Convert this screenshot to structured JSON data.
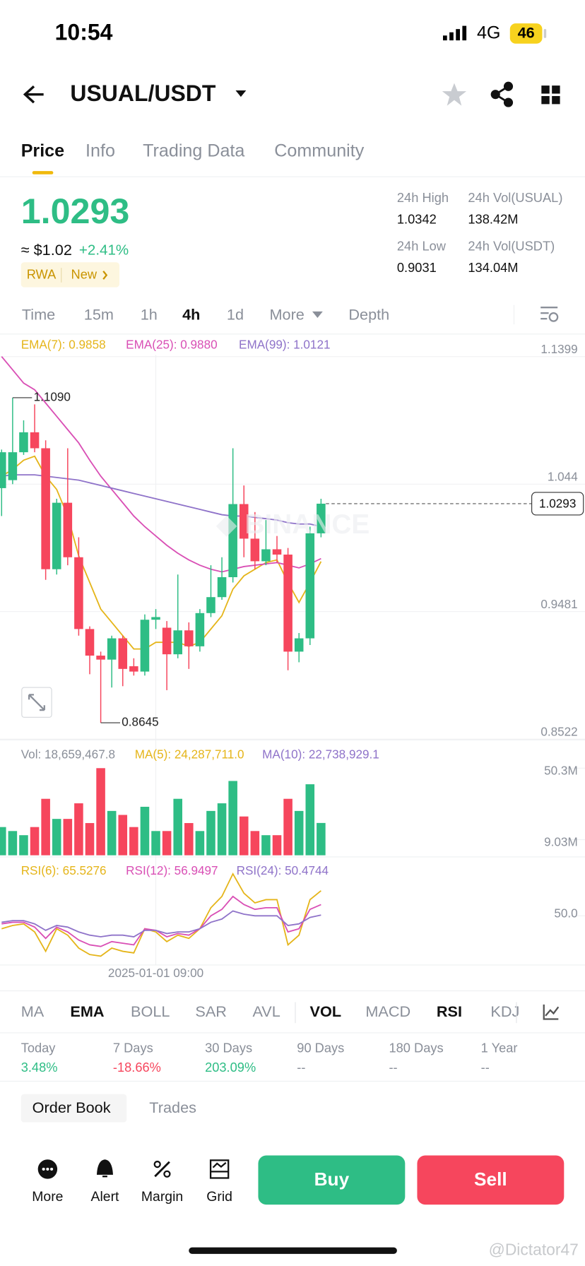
{
  "status_bar": {
    "time": "10:54",
    "network": "4G",
    "battery": "46"
  },
  "header": {
    "pair": "USUAL/USDT"
  },
  "tabs": [
    "Price",
    "Info",
    "Trading Data",
    "Community"
  ],
  "ticker": {
    "price": "1.0293",
    "usd": "≈ $1.02",
    "change": "+2.41%",
    "tags": [
      "RWA",
      "New"
    ],
    "stats": [
      {
        "label": "24h High",
        "value": "1.0342"
      },
      {
        "label": "24h Vol(USUAL)",
        "value": "138.42M"
      },
      {
        "label": "24h Low",
        "value": "0.9031"
      },
      {
        "label": "24h Vol(USDT)",
        "value": "134.04M"
      }
    ]
  },
  "intervals": [
    "Time",
    "15m",
    "1h",
    "4h",
    "1d",
    "More",
    "Depth"
  ],
  "chart_data": {
    "type": "candlestick",
    "categories": [
      null,
      null,
      null,
      null,
      null,
      null,
      null,
      null,
      null,
      null,
      null,
      null,
      null,
      null,
      "2025-01-01 09:00",
      null,
      null,
      null,
      null,
      null,
      null,
      null,
      null,
      null,
      null,
      null,
      null,
      null,
      null,
      null
    ],
    "open": [
      1.041,
      1.047,
      1.068,
      1.083,
      1.071,
      0.98,
      1.03,
      0.989,
      0.935,
      0.915,
      0.912,
      0.928,
      0.907,
      0.903,
      0.942,
      0.936,
      0.916,
      0.934,
      0.922,
      0.947,
      0.959,
      0.974,
      1.029,
      1.003,
      0.986,
      0.995,
      0.991,
      0.918,
      0.928,
      1.007
    ],
    "high": [
      1.07,
      1.109,
      1.092,
      1.104,
      1.077,
      1.033,
      1.071,
      1.004,
      0.937,
      0.918,
      0.93,
      0.93,
      0.913,
      0.946,
      0.95,
      0.941,
      0.976,
      0.94,
      0.95,
      0.983,
      0.989,
      1.071,
      1.043,
      1.023,
      1.017,
      1.005,
      0.996,
      0.932,
      1.012,
      1.033
    ],
    "low": [
      1.02,
      1.044,
      1.066,
      1.068,
      0.972,
      0.976,
      0.983,
      0.93,
      0.901,
      0.8645,
      0.891,
      0.892,
      0.9,
      0.9,
      0.935,
      0.889,
      0.913,
      0.905,
      0.918,
      0.944,
      0.957,
      0.97,
      0.989,
      0.98,
      0.983,
      0.985,
      0.904,
      0.91,
      0.923,
      1.004
    ],
    "close": [
      1.068,
      1.068,
      1.083,
      1.071,
      0.98,
      1.03,
      0.989,
      0.935,
      0.915,
      0.912,
      0.928,
      0.905,
      0.903,
      0.942,
      0.944,
      0.916,
      0.934,
      0.922,
      0.947,
      0.959,
      0.974,
      1.029,
      1.003,
      0.986,
      0.995,
      0.991,
      0.918,
      0.928,
      1.007,
      1.0293
    ],
    "up_color": "#2ebd85",
    "down_color": "#f6465d",
    "annotations": [
      {
        "value": 1.109,
        "label": "1.1090"
      },
      {
        "value": 0.8645,
        "label": "0.8645"
      }
    ],
    "ylim": [
      0.8522,
      1.1399
    ],
    "yticks": [
      1.1399,
      1.044,
      0.9481,
      0.8522
    ],
    "lines": [
      {
        "label": "EMA(7): 0.9858",
        "color": "#e5b51a",
        "values": [
          1.05,
          1.055,
          1.062,
          1.065,
          1.05,
          1.04,
          1.02,
          0.99,
          0.97,
          0.95,
          0.94,
          0.93,
          0.92,
          0.92,
          0.925,
          0.925,
          0.925,
          0.922,
          0.925,
          0.935,
          0.945,
          0.965,
          0.975,
          0.98,
          0.985,
          0.987,
          0.97,
          0.955,
          0.97,
          0.9858
        ]
      },
      {
        "label": "EMA(25): 0.9880",
        "color": "#d94fb5",
        "values": [
          1.14,
          1.13,
          1.12,
          1.115,
          1.105,
          1.095,
          1.085,
          1.075,
          1.062,
          1.05,
          1.04,
          1.03,
          1.02,
          1.012,
          1.005,
          0.998,
          0.992,
          0.987,
          0.983,
          0.98,
          0.978,
          0.98,
          0.982,
          0.983,
          0.984,
          0.985,
          0.983,
          0.981,
          0.984,
          0.988
        ]
      },
      {
        "label": "EMA(99): 1.0121",
        "color": "#8f73c9",
        "values": [
          1.05,
          1.051,
          1.051,
          1.051,
          1.05,
          1.049,
          1.048,
          1.047,
          1.045,
          1.043,
          1.041,
          1.039,
          1.037,
          1.035,
          1.033,
          1.031,
          1.029,
          1.027,
          1.025,
          1.023,
          1.021,
          1.02,
          1.02,
          1.019,
          1.018,
          1.017,
          1.015,
          1.014,
          1.014,
          1.0121
        ]
      }
    ],
    "volume": {
      "labels": [
        {
          "text": "Vol: 18,659,467.8",
          "color": "#8a8f99"
        },
        {
          "text": "MA(5): 24,287,711.0",
          "color": "#e5b51a"
        },
        {
          "text": "MA(10): 22,738,929.1",
          "color": "#8f73c9"
        }
      ],
      "values": [
        16300000,
        14000000,
        11600000,
        16300000,
        32600000,
        21000000,
        21000000,
        30000000,
        18600000,
        50300000,
        25600000,
        23300000,
        16300000,
        28000000,
        14000000,
        14000000,
        32600000,
        18600000,
        14000000,
        25600000,
        30000000,
        42900000,
        22400000,
        14000000,
        11600000,
        11600000,
        32600000,
        25600000,
        41000000,
        18659467.8
      ],
      "ylim": [
        0,
        50300000
      ],
      "yticks": [
        {
          "value": 50300000,
          "label": "50.3M"
        },
        {
          "value": 9030000,
          "label": "9.03M"
        }
      ]
    },
    "rsi": {
      "ylim": [
        20,
        80
      ],
      "yticks": [
        {
          "value": 50,
          "label": "50.0"
        }
      ],
      "series": [
        {
          "label": "RSI(6): 65.5276",
          "color": "#e5b51a",
          "values": [
            42,
            44,
            45,
            40,
            28,
            42,
            38,
            30,
            26,
            25,
            30,
            28,
            27,
            42,
            40,
            34,
            38,
            36,
            42,
            55,
            62,
            76,
            64,
            58,
            60,
            60,
            32,
            38,
            60,
            65.5276
          ]
        },
        {
          "label": "RSI(12): 56.9497",
          "color": "#d94fb5",
          "values": [
            45,
            46,
            46,
            43,
            36,
            43,
            40,
            35,
            32,
            31,
            34,
            33,
            32,
            42,
            41,
            37,
            39,
            38,
            42,
            50,
            54,
            62,
            57,
            54,
            55,
            55,
            40,
            42,
            54,
            56.9497
          ]
        },
        {
          "label": "RSI(24): 50.4744",
          "color": "#8f73c9",
          "values": [
            46,
            47,
            47,
            45,
            41,
            44,
            43,
            40,
            38,
            37,
            38,
            38,
            37,
            41,
            41,
            39,
            40,
            40,
            42,
            46,
            48,
            53,
            51,
            50,
            50,
            50,
            44,
            45,
            49,
            50.4744
          ]
        }
      ]
    }
  },
  "indicators": [
    "MA",
    "EMA",
    "BOLL",
    "SAR",
    "AVL",
    "VOL",
    "MACD",
    "RSI",
    "KDJ"
  ],
  "performance": [
    {
      "label": "Today",
      "value": "3.48%"
    },
    {
      "label": "7 Days",
      "value": "-18.66%"
    },
    {
      "label": "30 Days",
      "value": "203.09%"
    },
    {
      "label": "90 Days",
      "value": "--"
    },
    {
      "label": "180 Days",
      "value": "--"
    },
    {
      "label": "1 Year",
      "value": "--"
    }
  ],
  "book_tabs": [
    "Order Book",
    "Trades"
  ],
  "bottom_actions": [
    "More",
    "Alert",
    "Margin",
    "Grid"
  ],
  "buy": "Buy",
  "sell": "Sell",
  "watermark": "@Dictator47"
}
